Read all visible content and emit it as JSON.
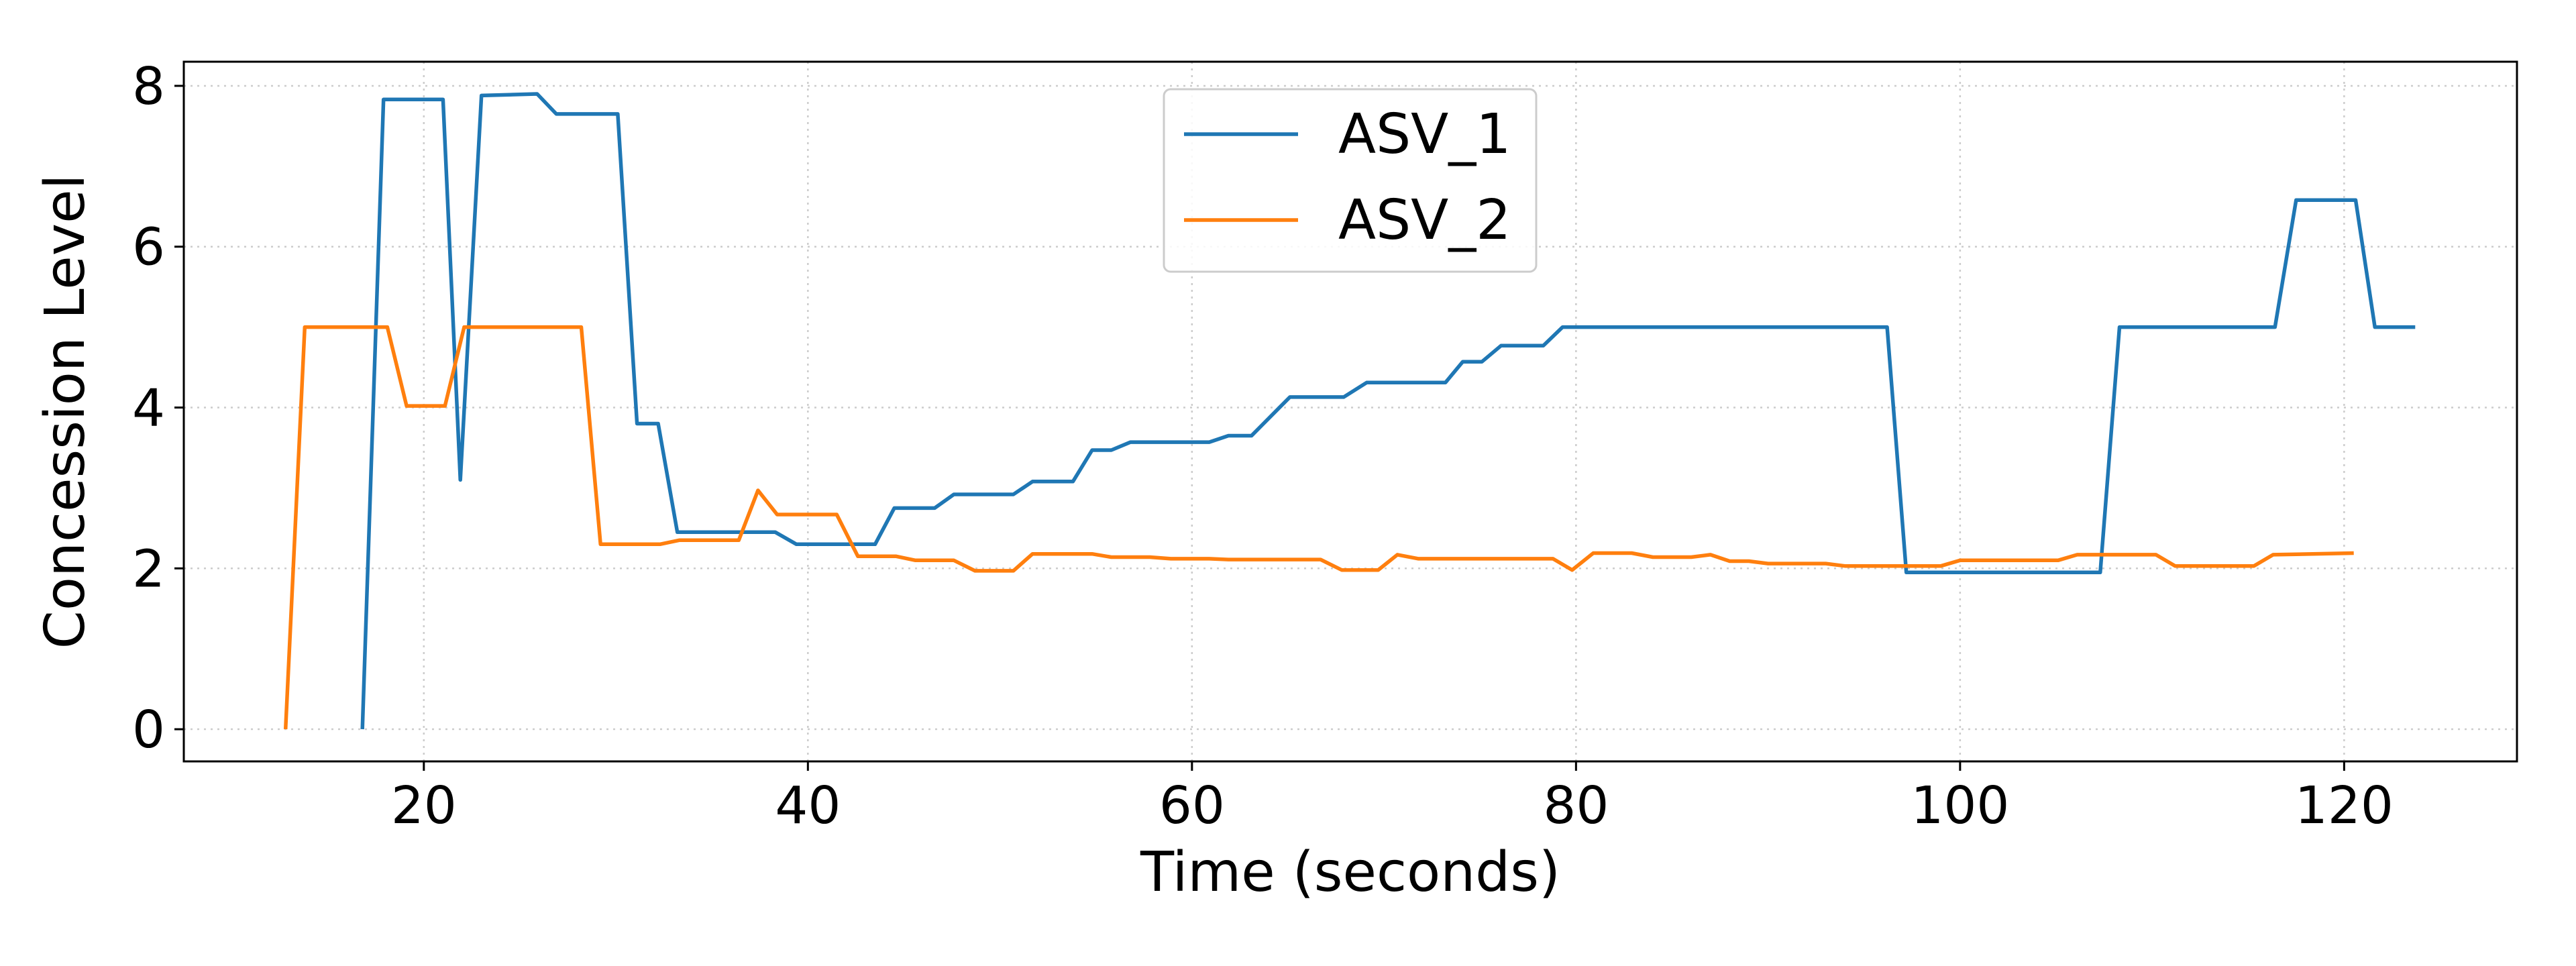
{
  "chart_data": {
    "type": "line",
    "title": "",
    "xlabel": "Time (seconds)",
    "ylabel": "Concession Level",
    "xlim": [
      7.5,
      129
    ],
    "ylim": [
      -0.4,
      8.3
    ],
    "xticks": [
      20,
      40,
      60,
      80,
      100,
      120
    ],
    "yticks": [
      0,
      2,
      4,
      6,
      8
    ],
    "grid": true,
    "legend_position": "top-center",
    "series": [
      {
        "name": "ASV_1",
        "color": "#1f77b4",
        "points": [
          [
            16.8,
            0
          ],
          [
            17.9,
            7.83
          ],
          [
            21,
            7.83
          ],
          [
            21.9,
            3.1
          ],
          [
            23,
            7.88
          ],
          [
            25.9,
            7.9
          ],
          [
            26.9,
            7.65
          ],
          [
            30.1,
            7.65
          ],
          [
            31.1,
            3.8
          ],
          [
            32.2,
            3.8
          ],
          [
            33.2,
            2.45
          ],
          [
            38.3,
            2.45
          ],
          [
            39.4,
            2.3
          ],
          [
            43.5,
            2.3
          ],
          [
            44.5,
            2.75
          ],
          [
            46.6,
            2.75
          ],
          [
            47.6,
            2.92
          ],
          [
            50.7,
            2.92
          ],
          [
            51.7,
            3.08
          ],
          [
            53.8,
            3.08
          ],
          [
            54.8,
            3.47
          ],
          [
            55.8,
            3.47
          ],
          [
            56.8,
            3.57
          ],
          [
            60.9,
            3.57
          ],
          [
            61.9,
            3.65
          ],
          [
            63.1,
            3.65
          ],
          [
            65.1,
            4.13
          ],
          [
            67.9,
            4.13
          ],
          [
            69.1,
            4.31
          ],
          [
            73.2,
            4.31
          ],
          [
            74.1,
            4.57
          ],
          [
            75.1,
            4.57
          ],
          [
            76.1,
            4.77
          ],
          [
            78.3,
            4.77
          ],
          [
            79.3,
            5
          ],
          [
            96.2,
            5
          ],
          [
            97.2,
            1.95
          ],
          [
            107.3,
            1.95
          ],
          [
            108.3,
            5
          ],
          [
            116.4,
            5
          ],
          [
            117.5,
            6.58
          ],
          [
            120.6,
            6.58
          ],
          [
            121.6,
            5
          ],
          [
            123.7,
            5
          ]
        ]
      },
      {
        "name": "ASV_2",
        "color": "#ff7f0e",
        "points": [
          [
            12.8,
            0
          ],
          [
            13.8,
            5
          ],
          [
            18.1,
            5
          ],
          [
            19.1,
            4.02
          ],
          [
            21.1,
            4.02
          ],
          [
            22.1,
            5
          ],
          [
            28.2,
            5
          ],
          [
            29.2,
            2.3
          ],
          [
            32.3,
            2.3
          ],
          [
            33.3,
            2.35
          ],
          [
            36.4,
            2.35
          ],
          [
            37.4,
            2.97
          ],
          [
            38.4,
            2.67
          ],
          [
            41.5,
            2.67
          ],
          [
            42.6,
            2.15
          ],
          [
            44.6,
            2.15
          ],
          [
            45.6,
            2.1
          ],
          [
            47.6,
            2.1
          ],
          [
            48.7,
            1.97
          ],
          [
            50.7,
            1.97
          ],
          [
            51.7,
            2.18
          ],
          [
            54.8,
            2.18
          ],
          [
            55.8,
            2.14
          ],
          [
            57.8,
            2.14
          ],
          [
            58.9,
            2.12
          ],
          [
            60.9,
            2.12
          ],
          [
            61.9,
            2.11
          ],
          [
            66.7,
            2.11
          ],
          [
            67.8,
            1.98
          ],
          [
            69.7,
            1.98
          ],
          [
            70.7,
            2.17
          ],
          [
            71.8,
            2.12
          ],
          [
            78.8,
            2.12
          ],
          [
            79.8,
            1.98
          ],
          [
            80.9,
            2.19
          ],
          [
            82.9,
            2.19
          ],
          [
            84,
            2.14
          ],
          [
            86,
            2.14
          ],
          [
            87,
            2.17
          ],
          [
            88,
            2.09
          ],
          [
            89,
            2.09
          ],
          [
            90,
            2.06
          ],
          [
            93,
            2.06
          ],
          [
            94,
            2.03
          ],
          [
            99,
            2.03
          ],
          [
            100,
            2.1
          ],
          [
            105.1,
            2.1
          ],
          [
            106.1,
            2.17
          ],
          [
            110.2,
            2.17
          ],
          [
            111.2,
            2.03
          ],
          [
            115.3,
            2.03
          ],
          [
            116.3,
            2.17
          ],
          [
            120.5,
            2.19
          ]
        ]
      }
    ]
  }
}
